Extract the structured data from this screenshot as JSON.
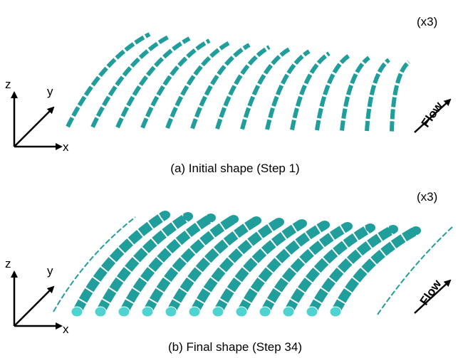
{
  "panels": [
    {
      "scale": "(x3)",
      "axes": {
        "z": "z",
        "y": "y",
        "x": "x"
      },
      "flow": "Flow",
      "caption": "(a) Initial shape (Step 1)"
    },
    {
      "scale": "(x3)",
      "axes": {
        "z": "z",
        "y": "y",
        "x": "x"
      },
      "flow": "Flow",
      "caption": "(b) Final shape (Step 34)"
    }
  ]
}
